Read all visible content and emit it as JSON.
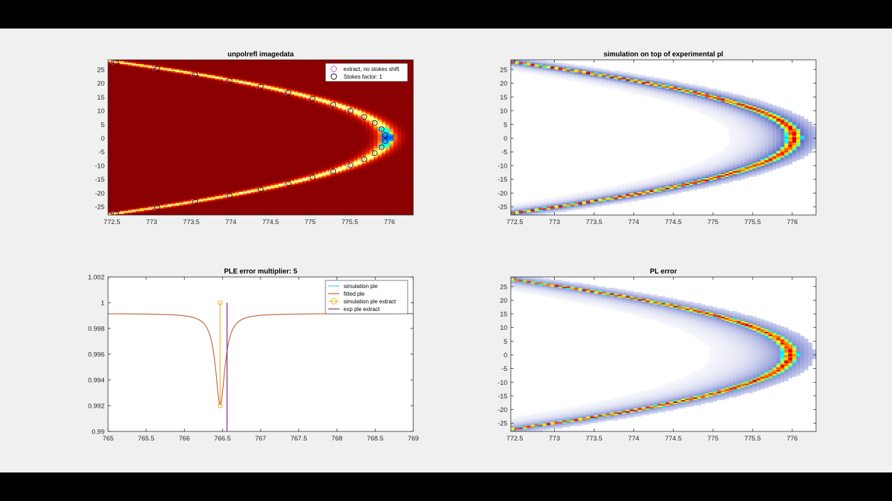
{
  "chart_data": [
    {
      "type": "heatmap",
      "title": "unpolrefl imagedata",
      "xlim": [
        772.45,
        776.3
      ],
      "ylim": [
        -28,
        28.5
      ],
      "xticks": [
        772.5,
        773,
        773.5,
        774,
        774.5,
        775,
        775.5,
        776
      ],
      "yticks": [
        -25,
        -20,
        -15,
        -10,
        -5,
        0,
        5,
        10,
        15,
        20,
        25
      ],
      "xtick_labels": [
        "772.5",
        "773",
        "773.5",
        "774",
        "774.5",
        "775",
        "775.5",
        "776"
      ],
      "ytick_labels": [
        "-25",
        "-20",
        "-15",
        "-10",
        "-5",
        "0",
        "5",
        "10",
        "15",
        "20",
        "25"
      ],
      "colormap": "hot-jet",
      "background": "#8b0000",
      "parabola": {
        "vertex_x": 775.95,
        "k": 0.0045
      },
      "legend": {
        "position": "top-right",
        "entries": [
          {
            "label": "extract, no stokes shift",
            "color": "#cc44cc",
            "marker": "circle"
          },
          {
            "label": "Stokes factor: 1",
            "color": "#000000",
            "marker": "circle"
          }
        ]
      }
    },
    {
      "type": "heatmap",
      "title": "simulation on top of experimental pl",
      "xlim": [
        772.45,
        776.3
      ],
      "ylim": [
        -28,
        28.5
      ],
      "xticks": [
        772.5,
        773,
        773.5,
        774,
        774.5,
        775,
        775.5,
        776
      ],
      "yticks": [
        -25,
        -20,
        -15,
        -10,
        -5,
        0,
        5,
        10,
        15,
        20,
        25
      ],
      "xtick_labels": [
        "772.5",
        "773",
        "773.5",
        "774",
        "774.5",
        "775",
        "775.5",
        "776"
      ],
      "ytick_labels": [
        "-25",
        "-20",
        "-15",
        "-10",
        "-5",
        "0",
        "5",
        "10",
        "15",
        "20",
        "25"
      ],
      "colormap": "white-blue-jet",
      "background": "#ffffff",
      "parabola": {
        "vertex_x": 776.0,
        "k": 0.0047
      }
    },
    {
      "type": "line",
      "title": "PLE error multiplier: 5",
      "xlim": [
        765,
        769
      ],
      "ylim": [
        0.99,
        1.002
      ],
      "xticks": [
        765,
        765.5,
        766,
        766.5,
        767,
        767.5,
        768,
        768.5,
        769
      ],
      "yticks": [
        0.99,
        0.992,
        0.994,
        0.996,
        0.998,
        1,
        1.002
      ],
      "xtick_labels": [
        "765",
        "765.5",
        "766",
        "766.5",
        "767",
        "767.5",
        "768",
        "768.5",
        "769"
      ],
      "ytick_labels": [
        "0.99",
        "0.992",
        "0.994",
        "0.996",
        "0.998",
        "1",
        "1.002"
      ],
      "lorentzian": {
        "baseline": 0.99915,
        "center": 766.47,
        "depth": 0.0071,
        "hwhm": 0.075
      },
      "sim_extract": {
        "x": 766.47,
        "y": [
          0.992,
          1.0
        ]
      },
      "exp_extract": {
        "x": 766.56,
        "y": [
          0.99,
          1.0
        ]
      },
      "legend": {
        "position": "top-right",
        "entries": [
          {
            "label": "simulation ple",
            "color": "#4dbeee",
            "marker": "line"
          },
          {
            "label": "fitted ple",
            "color": "#d95319",
            "marker": "line"
          },
          {
            "label": "simulation ple extract",
            "color": "#edb120",
            "marker": "circle"
          },
          {
            "label": "exp ple extract",
            "color": "#7e2f8e",
            "marker": "line"
          }
        ]
      }
    },
    {
      "type": "heatmap",
      "title": "PL error",
      "xlim": [
        772.45,
        776.3
      ],
      "ylim": [
        -28,
        28.5
      ],
      "xticks": [
        772.5,
        773,
        773.5,
        774,
        774.5,
        775,
        775.5,
        776
      ],
      "yticks": [
        -25,
        -20,
        -15,
        -10,
        -5,
        0,
        5,
        10,
        15,
        20,
        25
      ],
      "xtick_labels": [
        "772.5",
        "773",
        "773.5",
        "774",
        "774.5",
        "775",
        "775.5",
        "776"
      ],
      "ytick_labels": [
        "-25",
        "-20",
        "-15",
        "-10",
        "-5",
        "0",
        "5",
        "10",
        "15",
        "20",
        "25"
      ],
      "colormap": "white-blue-jet",
      "background": "#ffffff",
      "parabola": {
        "vertex_x": 775.95,
        "k": 0.0047
      }
    }
  ]
}
